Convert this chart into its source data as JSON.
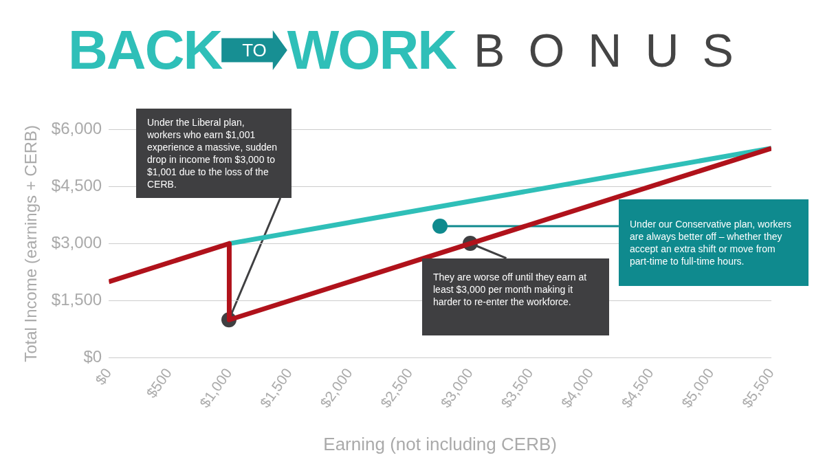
{
  "chart_data": {
    "type": "line",
    "title": "BACK TO WORK BONUS",
    "xlabel": "Earning (not including CERB)",
    "ylabel": "Total Income (earnings + CERB)",
    "series": [
      {
        "color": "#b0121b",
        "x": [
          0,
          1000,
          1000,
          5500
        ],
        "values": [
          2000,
          3000,
          1001,
          5500
        ]
      },
      {
        "color": "#2fbfb8",
        "x": [
          1000,
          5500
        ],
        "values": [
          3000,
          5500
        ]
      }
    ],
    "xlim": [
      0,
      5500
    ],
    "xticks": [
      {
        "value": 0,
        "label": "$0"
      },
      {
        "value": 500,
        "label": "$500"
      },
      {
        "value": 1000,
        "label": "$1,000"
      },
      {
        "value": 1500,
        "label": "$1,500"
      },
      {
        "value": 2000,
        "label": "$2,000"
      },
      {
        "value": 2500,
        "label": "$2,500"
      },
      {
        "value": 3000,
        "label": "$3,000"
      },
      {
        "value": 3500,
        "label": "$3,500"
      },
      {
        "value": 4000,
        "label": "$4,000"
      },
      {
        "value": 4500,
        "label": "$4,500"
      },
      {
        "value": 5000,
        "label": "$5,000"
      },
      {
        "value": 5500,
        "label": "$5,500"
      }
    ],
    "ylim": [
      0,
      6000
    ],
    "yticks": [
      {
        "value": 0,
        "label": "$0"
      },
      {
        "value": 1500,
        "label": "$1,500"
      },
      {
        "value": 3000,
        "label": "$3,000"
      },
      {
        "value": 4500,
        "label": "$4,500"
      },
      {
        "value": 6000,
        "label": "$6,000"
      }
    ],
    "grid": "y",
    "annotations": [
      {
        "text": "Under the Liberal plan, workers who earn $1,001 experience a massive, sudden drop in income from $3,000 to $1,001 due to the loss of the CERB.",
        "x": 1000,
        "y": 1001
      },
      {
        "text": "They are worse off until they earn at least $3,000 per month making it harder to re-enter the workforce.",
        "x": 3000,
        "y": 3000
      },
      {
        "text": "Under our Conservative plan, workers are always better off – whether they accept an extra shift or move from part-time to full-time hours.",
        "x": 2750,
        "y": 3450
      }
    ]
  }
}
